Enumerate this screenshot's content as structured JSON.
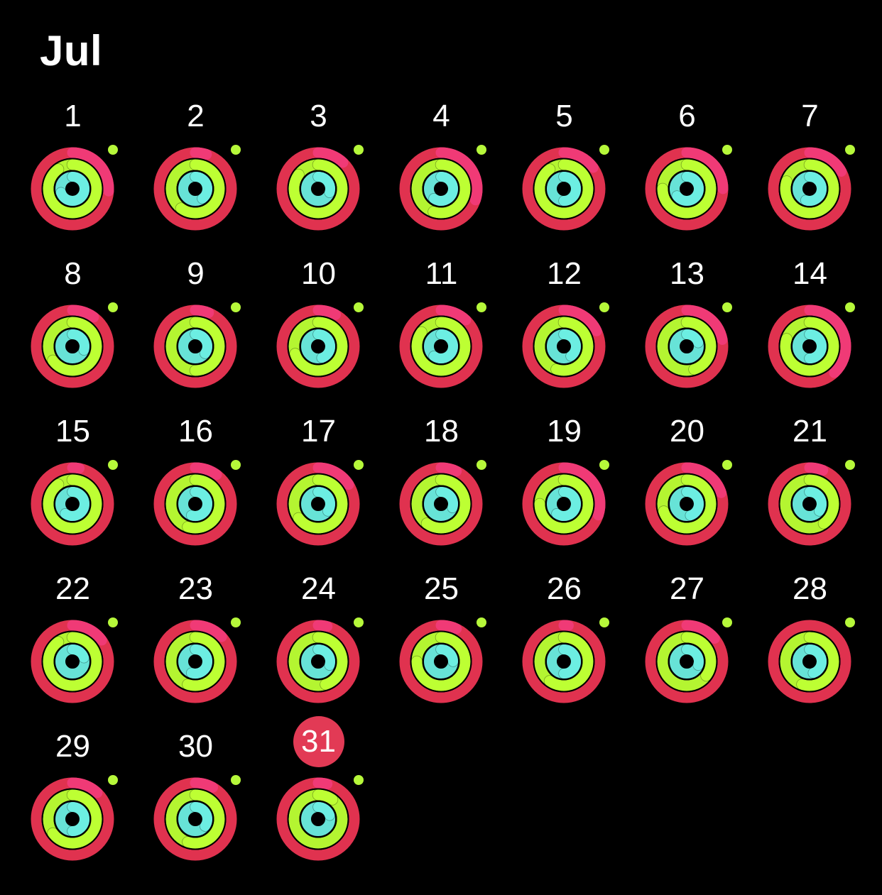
{
  "month": {
    "title": "Jul"
  },
  "today": "31",
  "colors": {
    "move_track": "#e0324f",
    "move_fill": "#f03a76",
    "exercise": "#b4f531",
    "stand": "#67e3d7",
    "stand_dot": "#b6f83a",
    "today_badge": "#e23a55"
  },
  "days": [
    {
      "label": "1",
      "move": 1.26,
      "exercise": 1.9,
      "stand": 1.7
    },
    {
      "label": "2",
      "move": 1.05,
      "exercise": 1.6,
      "stand": 1.4
    },
    {
      "label": "3",
      "move": 1.12,
      "exercise": 1.85,
      "stand": 1.3
    },
    {
      "label": "4",
      "move": 1.3,
      "exercise": 1.55,
      "stand": 1.6
    },
    {
      "label": "5",
      "move": 1.15,
      "exercise": 1.9,
      "stand": 1.5
    },
    {
      "label": "6",
      "move": 1.25,
      "exercise": 1.75,
      "stand": 1.65
    },
    {
      "label": "7",
      "move": 1.17,
      "exercise": 1.8,
      "stand": 1.55
    },
    {
      "label": "8",
      "move": 1.1,
      "exercise": 1.65,
      "stand": 1.3
    },
    {
      "label": "9",
      "move": 1.06,
      "exercise": 1.5,
      "stand": 1.35
    },
    {
      "label": "10",
      "move": 1.08,
      "exercise": 1.7,
      "stand": 1.45
    },
    {
      "label": "11",
      "move": 1.12,
      "exercise": 1.85,
      "stand": 1.6
    },
    {
      "label": "12",
      "move": 1.18,
      "exercise": 1.55,
      "stand": 1.4
    },
    {
      "label": "13",
      "move": 1.22,
      "exercise": 1.45,
      "stand": 1.2
    },
    {
      "label": "14",
      "move": 1.38,
      "exercise": 1.8,
      "stand": 1.5
    },
    {
      "label": "15",
      "move": 1.03,
      "exercise": 1.9,
      "stand": 1.6
    },
    {
      "label": "16",
      "move": 1.1,
      "exercise": 1.55,
      "stand": 1.55
    },
    {
      "label": "17",
      "move": 1.16,
      "exercise": 1.65,
      "stand": 1.35
    },
    {
      "label": "18",
      "move": 1.07,
      "exercise": 1.6,
      "stand": 1.3
    },
    {
      "label": "19",
      "move": 1.3,
      "exercise": 1.75,
      "stand": 1.6
    },
    {
      "label": "20",
      "move": 1.2,
      "exercise": 1.7,
      "stand": 1.45
    },
    {
      "label": "21",
      "move": 1.06,
      "exercise": 1.4,
      "stand": 1.35
    },
    {
      "label": "22",
      "move": 1.15,
      "exercise": 1.9,
      "stand": 1.2
    },
    {
      "label": "23",
      "move": 1.13,
      "exercise": 1.55,
      "stand": 1.55
    },
    {
      "label": "24",
      "move": 1.04,
      "exercise": 1.45,
      "stand": 1.3
    },
    {
      "label": "25",
      "move": 1.07,
      "exercise": 1.75,
      "stand": 1.25
    },
    {
      "label": "26",
      "move": 1.02,
      "exercise": 1.6,
      "stand": 1.5
    },
    {
      "label": "27",
      "move": 1.14,
      "exercise": 1.35,
      "stand": 1.3
    },
    {
      "label": "28",
      "move": 1.0,
      "exercise": 1.55,
      "stand": 1.45
    },
    {
      "label": "29",
      "move": 1.12,
      "exercise": 1.65,
      "stand": 1.5
    },
    {
      "label": "30",
      "move": 1.08,
      "exercise": 1.55,
      "stand": 1.35
    },
    {
      "label": "31",
      "move": 1.04,
      "exercise": 1.1,
      "stand": 1.2
    }
  ]
}
